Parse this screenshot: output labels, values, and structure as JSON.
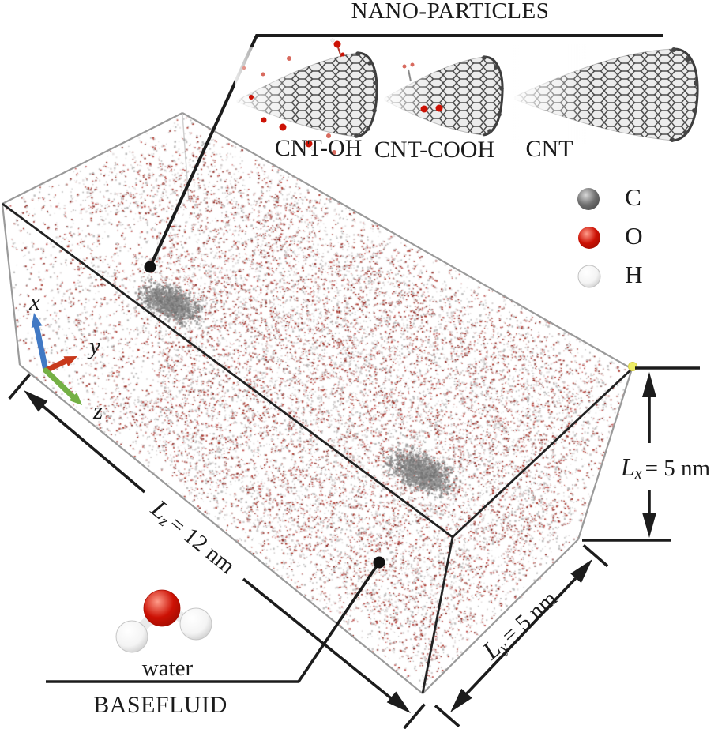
{
  "nanoparticles": {
    "title": "NANO-PARTICLES",
    "items": [
      {
        "label": "CNT-OH"
      },
      {
        "label": "CNT-COOH"
      },
      {
        "label": "CNT"
      }
    ]
  },
  "legend": {
    "items": [
      {
        "symbol": "C",
        "name": "carbon",
        "color": "#707070"
      },
      {
        "symbol": "O",
        "name": "oxygen",
        "color": "#cc1104"
      },
      {
        "symbol": "H",
        "name": "hydrogen",
        "color": "#f4f4f4"
      }
    ]
  },
  "axes": {
    "x": {
      "label": "x",
      "color": "#4179c4"
    },
    "y": {
      "label": "y",
      "color": "#c8391b"
    },
    "z": {
      "label": "z",
      "color": "#74b045"
    }
  },
  "dimensions": {
    "lz": {
      "symbol": "L",
      "subscript": "z",
      "value": "= 12 nm"
    },
    "lx": {
      "symbol": "L",
      "subscript": "x",
      "value": "= 5 nm"
    },
    "ly": {
      "symbol": "L",
      "subscript": "y",
      "value": "= 5 nm"
    }
  },
  "basefluid": {
    "molecule_label": "water",
    "label": "BASEFLUID"
  },
  "simulation_box": {
    "water_dot_colors": [
      "#a93226",
      "#c0504d",
      "#8e2620",
      "#b9b9b9",
      "#cfcaca",
      "#e6e2e2"
    ],
    "cnt_shadow_colors": [
      "#6f6f6f",
      "#838383",
      "#979797"
    ],
    "edge_color_back": "#9a9a9a",
    "edge_color_front": "#222222",
    "corner_marker_color": "#eeee66"
  }
}
